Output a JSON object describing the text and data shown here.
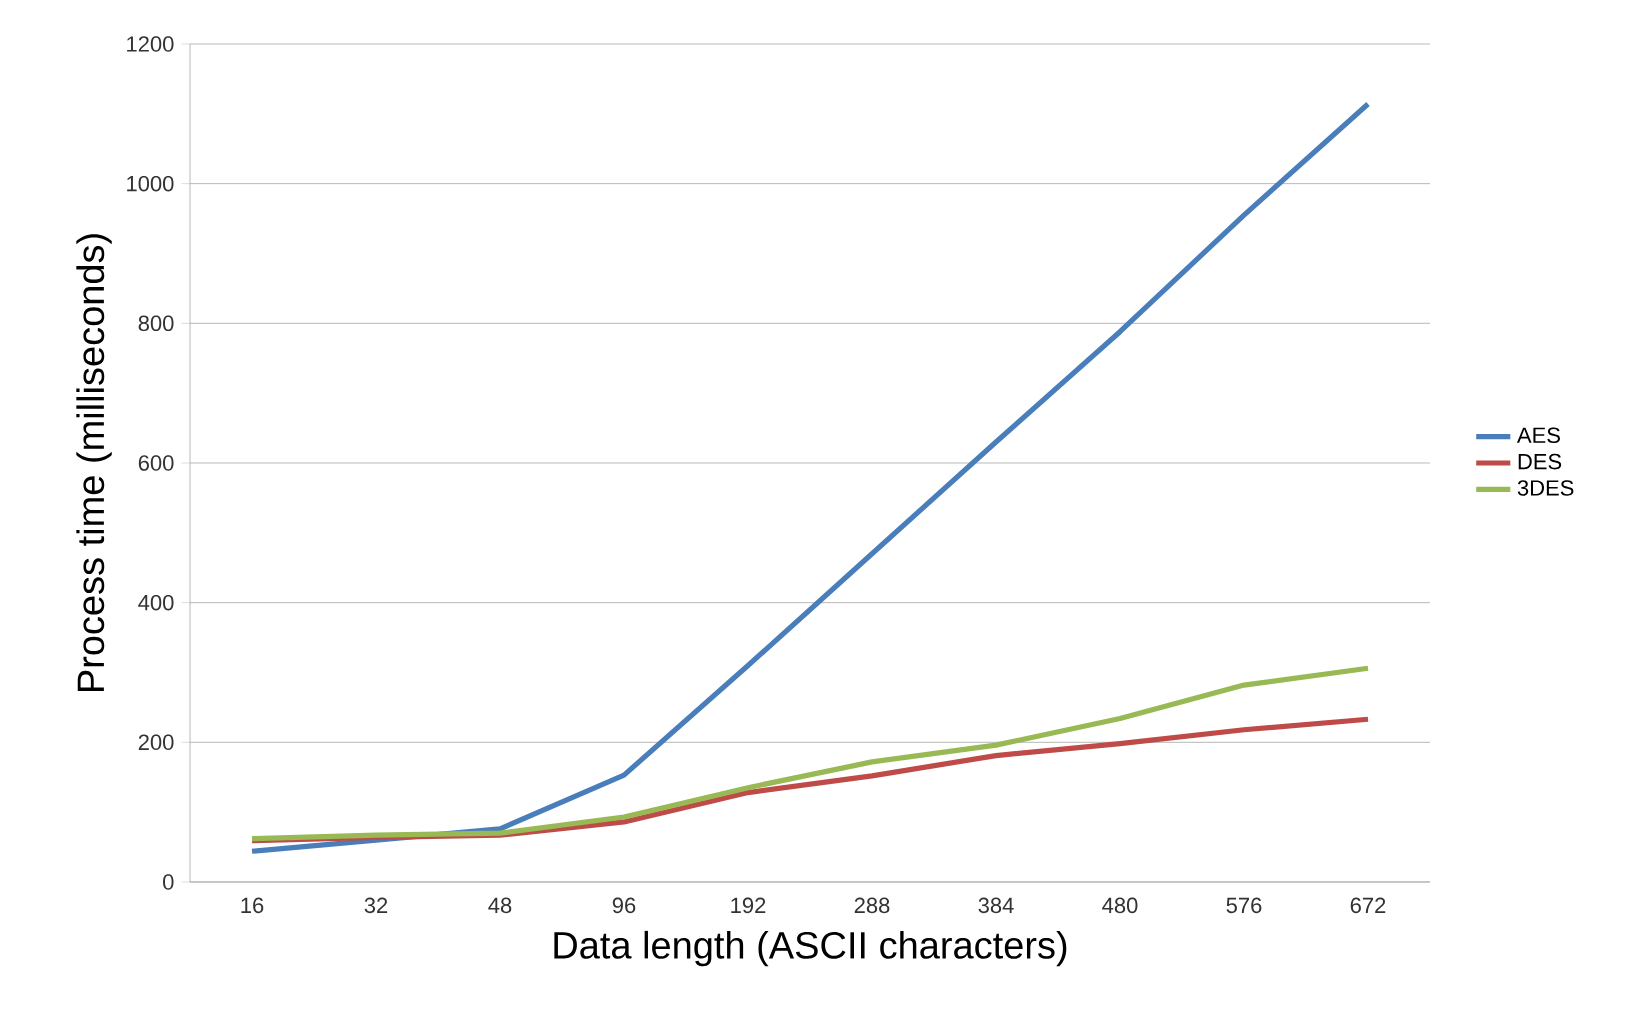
{
  "chart_data": {
    "type": "line",
    "xlabel": "Data length (ASCII characters)",
    "ylabel": "Process time (milliseconds)",
    "categories": [
      "16",
      "32",
      "48",
      "96",
      "192",
      "288",
      "384",
      "480",
      "576",
      "672"
    ],
    "series": [
      {
        "name": "AES",
        "color": "#4a7ebb",
        "values": [
          44,
          60,
          76,
          153,
          310,
          470,
          630,
          788,
          955,
          1114
        ]
      },
      {
        "name": "DES",
        "color": "#be4b48",
        "values": [
          59,
          64,
          67,
          86,
          128,
          152,
          181,
          198,
          218,
          233
        ]
      },
      {
        "name": "3DES",
        "color": "#98b954",
        "values": [
          62,
          67,
          70,
          93,
          135,
          172,
          196,
          234,
          282,
          306
        ]
      }
    ],
    "ylim": [
      0,
      1200
    ],
    "yticks": [
      0,
      200,
      400,
      600,
      800,
      1000,
      1200
    ],
    "grid": "y",
    "legend": "right",
    "marker": "none",
    "line_style": "solid"
  }
}
